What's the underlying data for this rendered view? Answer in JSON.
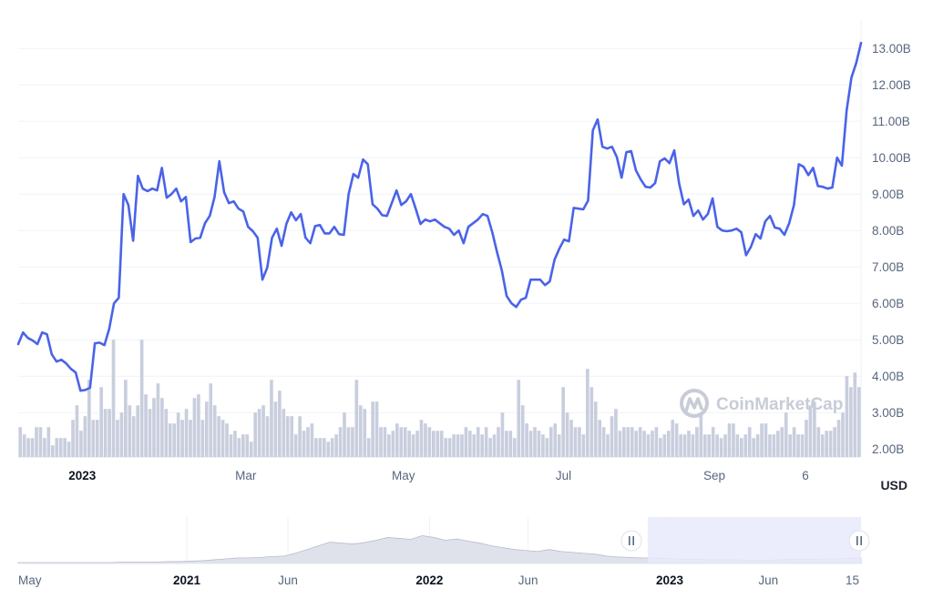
{
  "chart_data": {
    "type": "line",
    "series": [
      {
        "values": [
          4.88,
          5.2,
          5.05,
          4.98,
          4.88,
          5.2,
          5.15,
          4.6,
          4.4,
          4.45,
          4.35,
          4.2,
          4.1,
          3.6,
          3.62,
          3.68,
          4.9,
          4.92,
          4.85,
          5.3,
          6.0,
          6.15,
          9.0,
          8.7,
          7.72,
          9.5,
          9.15,
          9.08,
          9.15,
          9.1,
          9.72,
          8.9,
          9.0,
          9.15,
          8.8,
          8.92,
          7.68,
          7.78,
          7.8,
          8.2,
          8.4,
          8.92,
          9.9,
          9.05,
          8.75,
          8.8,
          8.6,
          8.52,
          8.1,
          7.98,
          7.8,
          6.65,
          6.98,
          7.8,
          8.05,
          7.58,
          8.18,
          8.5,
          8.28,
          8.45,
          7.8,
          7.65,
          8.12,
          8.15,
          7.92,
          7.92,
          8.1,
          7.9,
          7.88,
          9.0,
          9.55,
          9.45,
          9.95,
          9.82,
          8.72,
          8.6,
          8.42,
          8.4,
          8.75,
          9.1,
          8.7,
          8.8,
          9.0,
          8.6,
          8.18,
          8.3,
          8.25,
          8.3,
          8.2,
          8.1,
          8.05,
          7.88,
          8.0,
          7.65,
          8.1,
          8.2,
          8.3,
          8.45,
          8.4,
          7.95,
          7.4,
          6.9,
          6.2,
          6.0,
          5.9,
          6.1,
          6.15,
          6.65,
          6.65,
          6.65,
          6.5,
          6.6,
          7.2,
          7.5,
          7.75,
          7.7,
          8.62,
          8.6,
          8.58,
          8.82,
          10.75,
          11.05,
          10.3,
          10.25,
          10.3,
          10.02,
          9.45,
          10.15,
          10.18,
          9.65,
          9.4,
          9.2,
          9.18,
          9.3,
          9.9,
          9.98,
          9.85,
          10.2,
          9.3,
          8.72,
          8.85,
          8.4,
          8.55,
          8.3,
          8.45,
          8.88,
          8.1,
          8.0,
          7.98,
          8.0,
          8.05,
          7.95,
          7.32,
          7.55,
          7.9,
          7.78,
          8.25,
          8.4,
          8.08,
          8.05,
          7.88,
          8.2,
          8.7,
          9.82,
          9.75,
          9.52,
          9.72,
          9.22,
          9.2,
          9.15,
          9.18,
          10.0,
          9.78,
          11.3,
          12.2,
          12.6,
          13.15
        ]
      }
    ],
    "volume_bars": [
      0.6,
      0.4,
      0.3,
      0.3,
      0.6,
      0.6,
      0.3,
      0.6,
      0.1,
      0.3,
      0.3,
      0.3,
      0.2,
      0.8,
      1.2,
      0.5,
      0.9,
      1.9,
      0.8,
      0.8,
      1.7,
      1.1,
      1.1,
      3.0,
      0.8,
      1.0,
      1.9,
      1.2,
      0.9,
      1.2,
      3.0,
      1.5,
      1.1,
      1.4,
      1.8,
      1.4,
      1.1,
      0.7,
      0.7,
      1.0,
      0.8,
      1.1,
      0.8,
      1.4,
      1.5,
      0.8,
      1.3,
      1.8,
      1.2,
      0.9,
      0.8,
      0.7,
      0.4,
      0.5,
      0.3,
      0.4,
      0.4,
      0.2,
      1.0,
      1.1,
      1.2,
      0.9,
      1.9,
      1.3,
      1.6,
      1.1,
      0.9,
      0.9,
      0.4,
      0.9,
      0.5,
      0.6,
      0.7,
      0.3,
      0.3,
      0.3,
      0.2,
      0.3,
      0.4,
      0.6,
      1.0,
      0.6,
      0.6,
      1.9,
      1.2,
      1.1,
      0.3,
      1.3,
      1.3,
      0.6,
      0.6,
      0.4,
      0.5,
      0.7,
      0.6,
      0.6,
      0.5,
      0.4,
      0.5,
      0.8,
      0.7,
      0.6,
      0.5,
      0.5,
      0.5,
      0.3,
      0.3,
      0.4,
      0.4,
      0.4,
      0.6,
      0.5,
      0.4,
      0.6,
      0.4,
      0.6,
      0.3,
      0.4,
      0.6,
      1.0,
      0.5,
      0.5,
      0.3,
      1.9,
      1.2,
      0.7,
      0.5,
      0.6,
      0.5,
      0.4,
      0.3,
      0.6,
      0.7,
      0.4,
      1.7,
      1.0,
      0.8,
      0.6,
      0.6,
      0.4,
      2.2,
      1.7,
      1.3,
      0.8,
      0.6,
      0.4,
      0.9,
      1.1,
      0.5,
      0.6,
      0.6,
      0.6,
      0.5,
      0.6,
      0.5,
      0.4,
      0.5,
      0.6,
      0.3,
      0.4,
      0.5,
      0.8,
      0.7,
      0.4,
      0.4,
      0.5,
      0.4,
      0.6,
      1.0,
      0.4,
      0.4,
      0.6,
      0.4,
      0.3,
      0.4,
      0.7,
      0.7,
      0.4,
      0.3,
      0.4,
      0.6,
      0.3,
      0.4,
      0.7,
      0.7,
      0.4,
      0.4,
      0.5,
      0.6,
      1.0,
      0.4,
      0.6,
      0.4,
      0.4,
      0.8,
      1.2,
      1.3,
      0.6,
      0.4,
      0.5,
      0.5,
      0.6,
      0.8,
      1.0,
      2.0,
      1.7,
      2.1,
      1.7
    ],
    "y_tick_labels": [
      "13.00B",
      "12.00B",
      "11.00B",
      "10.00B",
      "9.00B",
      "8.00B",
      "7.00B",
      "6.00B",
      "5.00B",
      "4.00B",
      "3.00B",
      "2.00B"
    ],
    "y_ticks": [
      13,
      12,
      11,
      10,
      9,
      8,
      7,
      6,
      5,
      4,
      3,
      2
    ],
    "ylim": [
      1.78,
      13.78
    ],
    "unit_label": "USD",
    "x_tick_labels": [
      {
        "label": "2023",
        "bold": true,
        "pos": 0.076
      },
      {
        "label": "Mar",
        "bold": false,
        "pos": 0.27
      },
      {
        "label": "May",
        "bold": false,
        "pos": 0.457
      },
      {
        "label": "Jul",
        "bold": false,
        "pos": 0.647
      },
      {
        "label": "Sep",
        "bold": false,
        "pos": 0.826
      },
      {
        "label": "6",
        "bold": false,
        "pos": 0.934
      }
    ],
    "watermark": "CoinMarketCap",
    "grid": true,
    "line_color": "#4a63e8",
    "volume_color": "#c9cede",
    "navigator": {
      "tick_labels": [
        {
          "label": "May",
          "bold": false,
          "pos": 0.0
        },
        {
          "label": "2021",
          "bold": true,
          "pos": 0.2
        },
        {
          "label": "Jun",
          "bold": false,
          "pos": 0.32
        },
        {
          "label": "2022",
          "bold": true,
          "pos": 0.488
        },
        {
          "label": "Jun",
          "bold": false,
          "pos": 0.605
        },
        {
          "label": "2023",
          "bold": true,
          "pos": 0.773
        },
        {
          "label": "Jun",
          "bold": false,
          "pos": 0.89
        },
        {
          "label": "15",
          "bold": false,
          "pos": 0.99
        }
      ],
      "area_values": [
        0.02,
        0.02,
        0.02,
        0.02,
        0.02,
        0.02,
        0.02,
        0.02,
        0.02,
        0.03,
        0.03,
        0.03,
        0.03,
        0.04,
        0.04,
        0.05,
        0.06,
        0.08,
        0.1,
        0.12,
        0.12,
        0.13,
        0.15,
        0.16,
        0.22,
        0.3,
        0.38,
        0.46,
        0.44,
        0.42,
        0.45,
        0.5,
        0.56,
        0.54,
        0.52,
        0.6,
        0.56,
        0.5,
        0.53,
        0.48,
        0.44,
        0.38,
        0.34,
        0.3,
        0.28,
        0.26,
        0.3,
        0.26,
        0.24,
        0.22,
        0.2,
        0.16,
        0.14,
        0.13,
        0.12,
        0.12,
        0.11,
        0.1,
        0.09,
        0.09,
        0.08,
        0.08,
        0.08,
        0.07,
        0.07,
        0.07,
        0.08,
        0.09,
        0.09,
        0.09,
        0.1,
        0.1,
        0.11,
        0.12
      ],
      "selection_start": 0.747,
      "area_color": "#dfe2ea",
      "selection_color": "#e8eafb"
    }
  }
}
